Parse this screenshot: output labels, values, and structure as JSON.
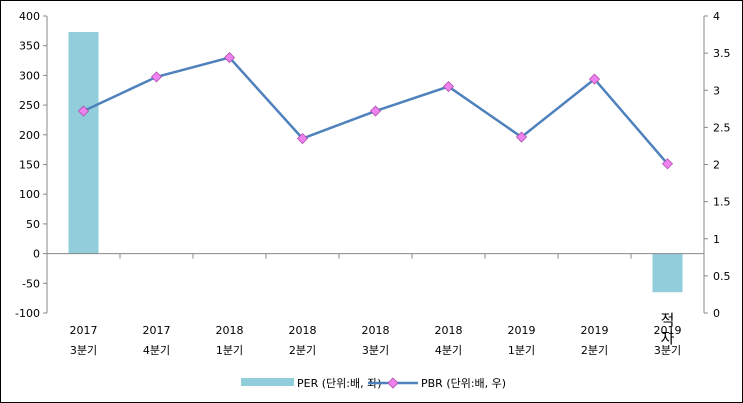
{
  "chart_data": {
    "type": "bar",
    "categories": [
      [
        "2017",
        "3분기"
      ],
      [
        "2017",
        "4분기"
      ],
      [
        "2018",
        "1분기"
      ],
      [
        "2018",
        "2분기"
      ],
      [
        "2018",
        "3분기"
      ],
      [
        "2018",
        "4분기"
      ],
      [
        "2019",
        "1분기"
      ],
      [
        "2019",
        "2분기"
      ],
      [
        "2019",
        "3분기"
      ]
    ],
    "series": [
      {
        "name": "PER (단위:배, 좌)",
        "type": "bar",
        "axis": "left",
        "color": "#92cddc",
        "values": [
          373,
          null,
          null,
          null,
          null,
          null,
          null,
          null,
          -65
        ]
      },
      {
        "name": "PBR (단위:배, 우)",
        "type": "line",
        "axis": "right",
        "color": "#4f81bd",
        "marker_color": "#ee82ee",
        "values": [
          2.72,
          3.18,
          3.44,
          2.35,
          2.72,
          3.05,
          2.37,
          3.15,
          2.01
        ]
      }
    ],
    "y_left": {
      "min": -100,
      "max": 400,
      "step": 50
    },
    "y_right": {
      "min": 0,
      "max": 4,
      "step": 0.5
    },
    "annotations": [
      {
        "category_index": 8,
        "text": "적자"
      }
    ],
    "legend": "bottom-center",
    "grid": false
  }
}
